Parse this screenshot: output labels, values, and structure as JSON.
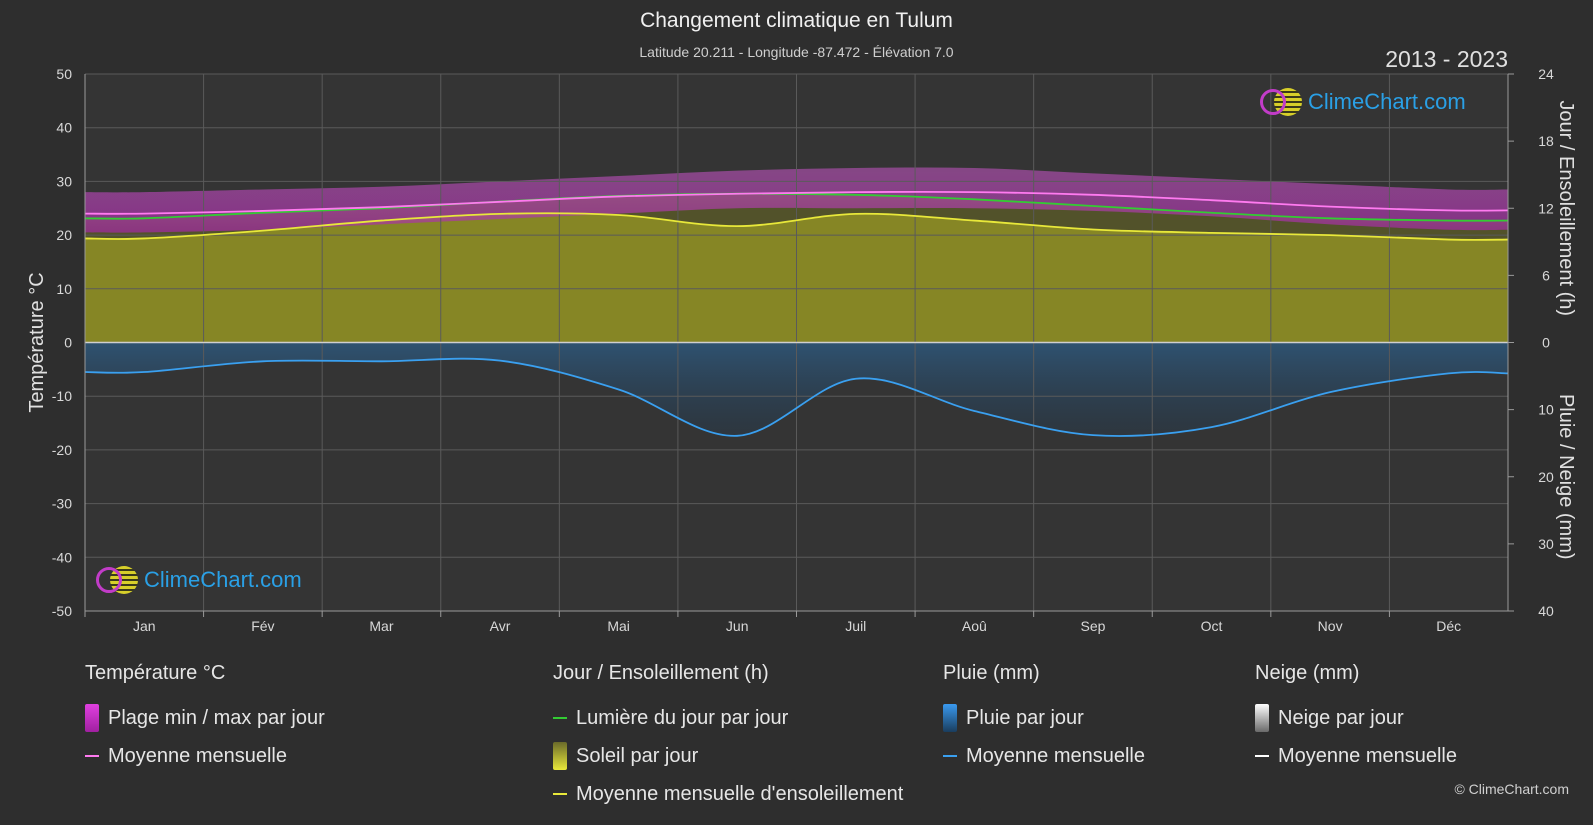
{
  "header": {
    "title": "Changement climatique en Tulum",
    "subtitle": "Latitude 20.211 - Longitude -87.472 - Élévation 7.0",
    "years": "2013 - 2023"
  },
  "logo_text": "ClimeChart.com",
  "copyright": "© ClimeChart.com",
  "colors": {
    "background": "#2e2e2e",
    "temp_range": "#c83cc8",
    "temp_mean": "#ff7af0",
    "daylight": "#33cc33",
    "sunshine_fill": "#8f8f24",
    "sunshine_mean": "#e8e83a",
    "rain": "#2a78c2",
    "rain_mean": "#3aa0f0",
    "snow_mean": "#ffffff"
  },
  "chart_data": {
    "type": "line",
    "months": [
      "Jan",
      "Fév",
      "Mar",
      "Avr",
      "Mai",
      "Jun",
      "Juil",
      "Aoû",
      "Sep",
      "Oct",
      "Nov",
      "Déc"
    ],
    "axes": {
      "left": {
        "label": "Température °C",
        "min": -50,
        "max": 50,
        "ticks": [
          50,
          40,
          30,
          20,
          10,
          0,
          -10,
          -20,
          -30,
          -40,
          -50
        ]
      },
      "right_top": {
        "label": "Jour / Ensoleillement (h)",
        "min": 0,
        "max": 24,
        "ticks": [
          24,
          18,
          12,
          6,
          0
        ]
      },
      "right_bottom": {
        "label": "Pluie / Neige (mm)",
        "min": 0,
        "max": 40,
        "ticks": [
          0,
          10,
          20,
          30,
          40
        ]
      }
    },
    "series": [
      {
        "name": "Moyenne mensuelle",
        "group": "temperature",
        "values": [
          24.0,
          24.5,
          25.2,
          26.2,
          27.2,
          27.7,
          28.0,
          28.0,
          27.5,
          26.5,
          25.3,
          24.6
        ]
      },
      {
        "name": "Lumière du jour par jour",
        "group": "sun",
        "values": [
          11.1,
          11.6,
          12.0,
          12.6,
          13.1,
          13.3,
          13.2,
          12.8,
          12.2,
          11.6,
          11.1,
          10.9
        ]
      },
      {
        "name": "Moyenne mensuelle d'ensoleillement",
        "group": "sun",
        "values": [
          9.3,
          10.0,
          10.9,
          11.5,
          11.4,
          10.4,
          11.5,
          10.9,
          10.1,
          9.8,
          9.6,
          9.2
        ]
      },
      {
        "name": "Moyenne mensuelle",
        "group": "rain",
        "values": [
          4.4,
          2.8,
          2.8,
          2.7,
          7.0,
          13.9,
          5.4,
          10.2,
          13.8,
          12.6,
          7.4,
          4.6
        ]
      },
      {
        "name": "Moyenne mensuelle",
        "group": "snow",
        "values": [
          0,
          0,
          0,
          0,
          0,
          0,
          0,
          0,
          0,
          0,
          0,
          0
        ]
      }
    ],
    "temp_range": {
      "min": [
        20.5,
        21.0,
        22.0,
        23.0,
        24.0,
        25.0,
        25.0,
        25.0,
        24.5,
        23.5,
        22.0,
        21.0
      ],
      "max": [
        28.0,
        28.5,
        29.0,
        30.0,
        31.0,
        32.0,
        32.5,
        32.5,
        31.5,
        30.5,
        29.5,
        28.5
      ]
    }
  },
  "legend": {
    "temperature": {
      "header": "Température °C",
      "range": "Plage min / max par jour",
      "mean": "Moyenne mensuelle"
    },
    "sun": {
      "header": "Jour / Ensoleillement (h)",
      "daylight": "Lumière du jour par jour",
      "sunshine": "Soleil par jour",
      "mean": "Moyenne mensuelle d'ensoleillement"
    },
    "rain": {
      "header": "Pluie (mm)",
      "daily": "Pluie par jour",
      "mean": "Moyenne mensuelle"
    },
    "snow": {
      "header": "Neige (mm)",
      "daily": "Neige par jour",
      "mean": "Moyenne mensuelle"
    }
  }
}
